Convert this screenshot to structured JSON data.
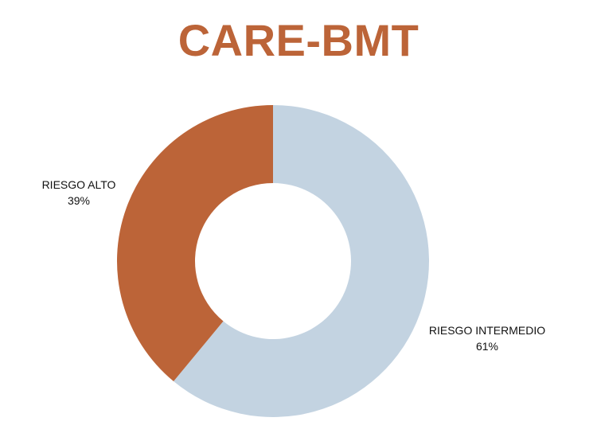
{
  "chart_data": {
    "type": "pie",
    "variant": "donut",
    "title": "CARE-BMT",
    "slices": [
      {
        "label": "RIESGO INTERMEDIO",
        "value": 61,
        "display": "61%",
        "color": "#c3d3e1"
      },
      {
        "label": "RIESGO ALTO",
        "value": 39,
        "display": "39%",
        "color": "#bc6438"
      }
    ],
    "title_color": "#bc6438",
    "legend": "none",
    "labels": "outside"
  }
}
